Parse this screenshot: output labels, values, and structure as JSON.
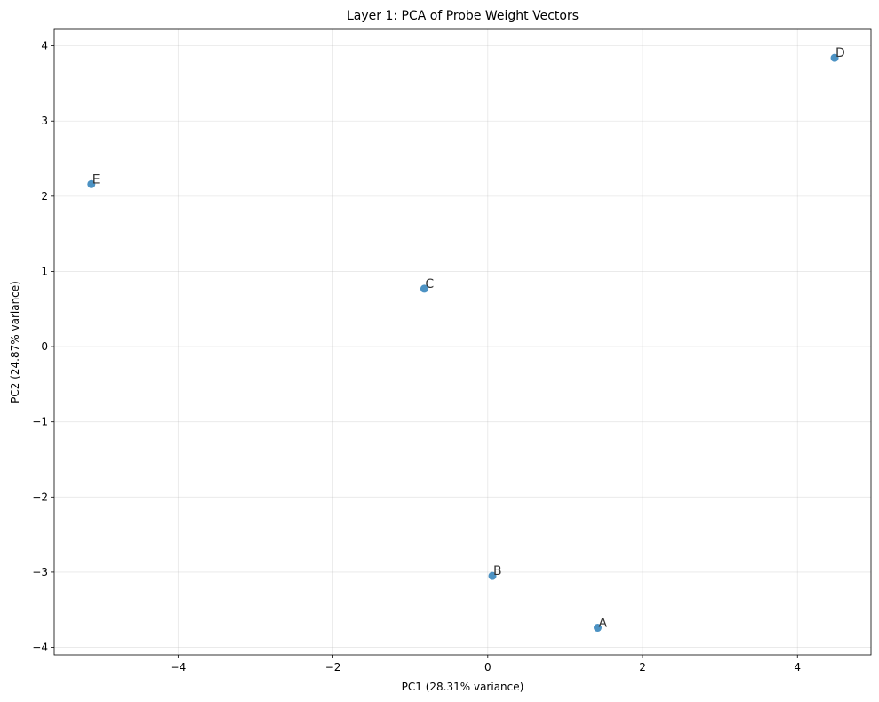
{
  "chart_data": {
    "type": "scatter",
    "title": "Layer 1: PCA of Probe Weight Vectors",
    "xlabel": "PC1 (28.31% variance)",
    "ylabel": "PC2 (24.87% variance)",
    "xlim": [
      -5.6,
      4.95
    ],
    "ylim": [
      -4.1,
      4.22
    ],
    "xticks": [
      -4,
      -2,
      0,
      2,
      4
    ],
    "xtick_labels": [
      "−4",
      "−2",
      "0",
      "2",
      "4"
    ],
    "yticks": [
      -4,
      -3,
      -2,
      -1,
      0,
      1,
      2,
      3,
      4
    ],
    "ytick_labels": [
      "−4",
      "−3",
      "−2",
      "−1",
      "0",
      "1",
      "2",
      "3",
      "4"
    ],
    "grid": true,
    "color": "#1f77b4",
    "points": [
      {
        "label": "A",
        "x": 1.42,
        "y": -3.74
      },
      {
        "label": "B",
        "x": 0.06,
        "y": -3.05
      },
      {
        "label": "C",
        "x": -0.82,
        "y": 0.77
      },
      {
        "label": "D",
        "x": 4.48,
        "y": 3.84
      },
      {
        "label": "E",
        "x": -5.12,
        "y": 2.16
      }
    ]
  }
}
